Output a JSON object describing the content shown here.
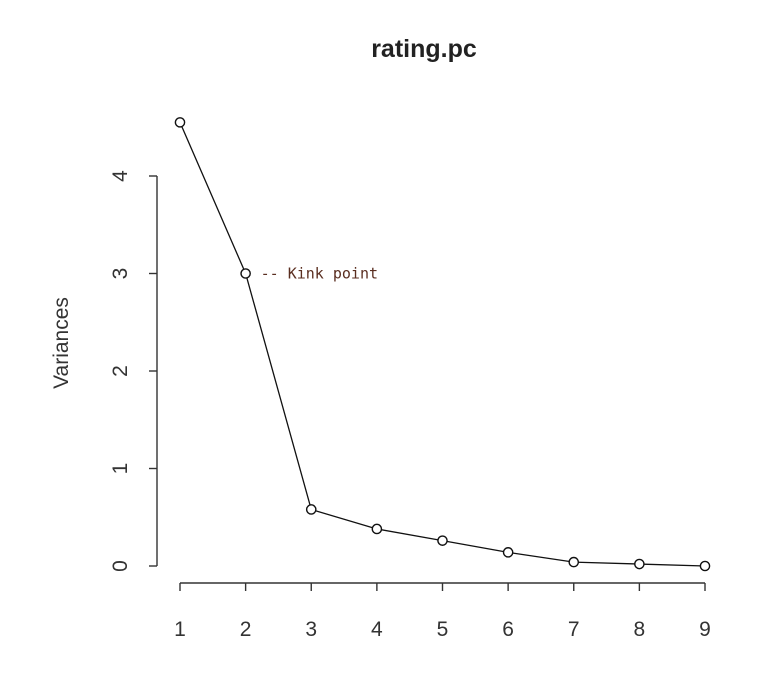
{
  "chart_data": {
    "type": "line",
    "title": "rating.pc",
    "xlabel": "",
    "ylabel": "Variances",
    "x": [
      1,
      2,
      3,
      4,
      5,
      6,
      7,
      8,
      9
    ],
    "series": [
      {
        "values": [
          4.55,
          3.0,
          0.58,
          0.38,
          0.26,
          0.14,
          0.04,
          0.02,
          0.0
        ]
      }
    ],
    "xlim": [
      1,
      9
    ],
    "ylim": [
      0,
      4.6
    ],
    "xticks": [
      "1",
      "2",
      "3",
      "4",
      "5",
      "6",
      "7",
      "8",
      "9"
    ],
    "yticks": [
      "0",
      "1",
      "2",
      "3",
      "4"
    ],
    "grid": false,
    "annotations": [
      {
        "text": "-- Kink point",
        "x": 2,
        "y": 3.0
      }
    ]
  }
}
